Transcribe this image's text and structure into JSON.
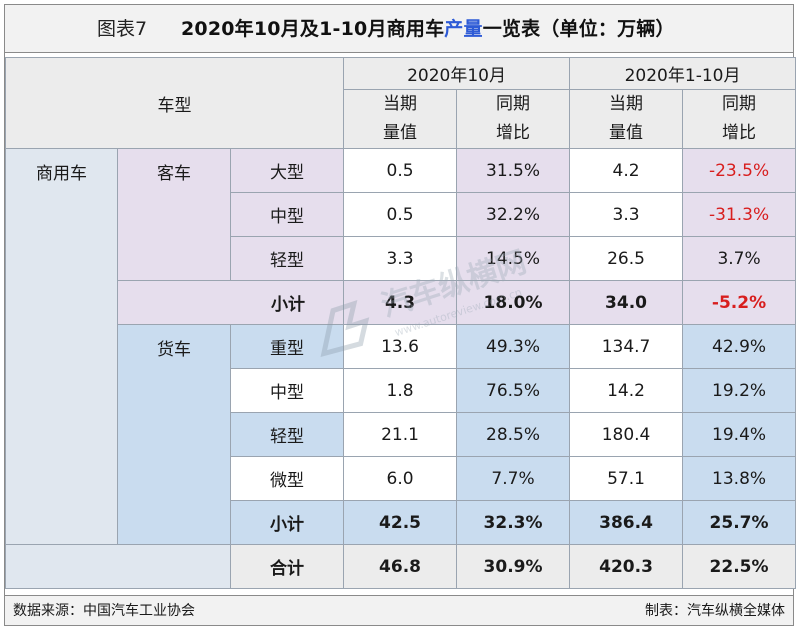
{
  "title": {
    "figure_label": "图表7",
    "part1": "2020年10月及1-10月商用车",
    "highlight": "产量",
    "part2": "一览表（单位：万辆）"
  },
  "header": {
    "vehicle_type": "车型",
    "period1": "2020年10月",
    "period2": "2020年1-10月",
    "col_current_line1": "当期",
    "col_current_line2": "量值",
    "col_yoy_line1": "同期",
    "col_yoy_line2": "增比"
  },
  "category": "商用车",
  "bus": {
    "label": "客车",
    "rows": [
      {
        "type": "大型",
        "oct_value": "0.5",
        "oct_yoy": "31.5%",
        "ytd_value": "4.2",
        "ytd_yoy": "-23.5%"
      },
      {
        "type": "中型",
        "oct_value": "0.5",
        "oct_yoy": "32.2%",
        "ytd_value": "3.3",
        "ytd_yoy": "-31.3%"
      },
      {
        "type": "轻型",
        "oct_value": "3.3",
        "oct_yoy": "14.5%",
        "ytd_value": "26.5",
        "ytd_yoy": "3.7%"
      }
    ],
    "subtotal": {
      "label": "小计",
      "oct_value": "4.3",
      "oct_yoy": "18.0%",
      "ytd_value": "34.0",
      "ytd_yoy": "-5.2%"
    }
  },
  "truck": {
    "label": "货车",
    "rows": [
      {
        "type": "重型",
        "oct_value": "13.6",
        "oct_yoy": "49.3%",
        "ytd_value": "134.7",
        "ytd_yoy": "42.9%"
      },
      {
        "type": "中型",
        "oct_value": "1.8",
        "oct_yoy": "76.5%",
        "ytd_value": "14.2",
        "ytd_yoy": "19.2%"
      },
      {
        "type": "轻型",
        "oct_value": "21.1",
        "oct_yoy": "28.5%",
        "ytd_value": "180.4",
        "ytd_yoy": "19.4%"
      },
      {
        "type": "微型",
        "oct_value": "6.0",
        "oct_yoy": "7.7%",
        "ytd_value": "57.1",
        "ytd_yoy": "13.8%"
      }
    ],
    "subtotal": {
      "label": "小计",
      "oct_value": "42.5",
      "oct_yoy": "32.3%",
      "ytd_value": "386.4",
      "ytd_yoy": "25.7%"
    }
  },
  "total": {
    "label": "合计",
    "oct_value": "46.8",
    "oct_yoy": "30.9%",
    "ytd_value": "420.3",
    "ytd_yoy": "22.5%"
  },
  "watermark": {
    "text": "汽车纵横网",
    "url": "www.autoreview.com.cn"
  },
  "footer": {
    "source": "数据来源：中国汽车工业协会",
    "maker": "制表：汽车纵横全媒体"
  },
  "colors": {
    "title_highlight": "#2e5bd6",
    "negative": "#d81e1e",
    "bus_background": "#e6deed",
    "truck_background": "#c9dcef",
    "header_background": "#ececec"
  }
}
